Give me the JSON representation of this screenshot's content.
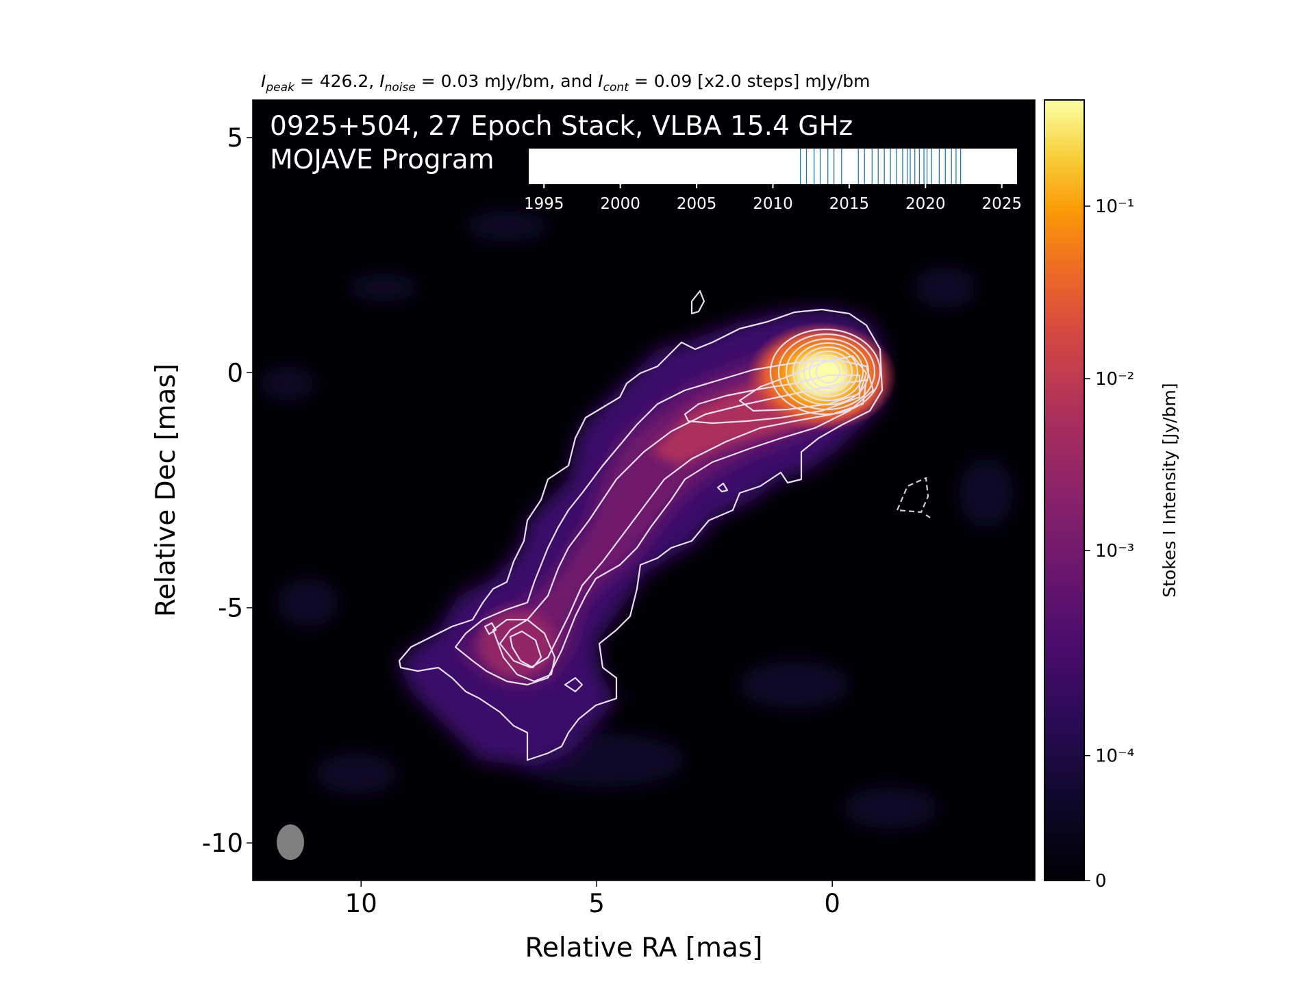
{
  "header": {
    "peak_sym": "I",
    "peak_sub": "peak",
    "peak_val": " = 426.2, ",
    "noise_sym": "I",
    "noise_sub": "noise",
    "noise_val": " = 0.03 mJy/bm, and ",
    "cont_sym": "I",
    "cont_sub": "cont",
    "cont_val": " = 0.09 [x2.0 steps] mJy/bm"
  },
  "chart_data": {
    "type": "heatmap",
    "title_line1": "0925+504, 27 Epoch Stack, VLBA 15.4 GHz",
    "title_line2": "MOJAVE Program",
    "xlabel": "Relative RA [mas]",
    "ylabel": "Relative Dec [mas]",
    "xlim": [
      12.3,
      -4.3
    ],
    "ylim": [
      -10.8,
      5.8
    ],
    "xticks": [
      {
        "value": 10,
        "label": "10"
      },
      {
        "value": 5,
        "label": "5"
      },
      {
        "value": 0,
        "label": "0"
      }
    ],
    "yticks": [
      {
        "value": 5,
        "label": "5"
      },
      {
        "value": 0,
        "label": "0"
      },
      {
        "value": -5,
        "label": "-5"
      },
      {
        "value": -10,
        "label": "-10"
      }
    ],
    "colorbar": {
      "label": "Stokes I Intensity [Jy/bm]",
      "colormap": "inferno",
      "ticks": [
        {
          "label": "0",
          "frac": 0.0
        },
        {
          "label": "10⁻⁴",
          "frac": 0.16
        },
        {
          "label": "10⁻³",
          "frac": 0.423
        },
        {
          "label": "10⁻²",
          "frac": 0.643
        },
        {
          "label": "10⁻¹",
          "frac": 0.864
        }
      ]
    },
    "core": {
      "ra": 0.1,
      "dec": -0.1,
      "peak_jy_per_bm": 0.4262
    },
    "beam": {
      "ra": 11.6,
      "dec": -10.0
    },
    "epoch_timeline": {
      "xlim": [
        1994,
        2026
      ],
      "ticks": [
        1995,
        2000,
        2005,
        2010,
        2015,
        2020,
        2025
      ],
      "epochs": [
        2011.8,
        2012.2,
        2012.7,
        2013.1,
        2013.6,
        2014.0,
        2014.5,
        2015.6,
        2016.0,
        2016.5,
        2016.9,
        2017.3,
        2017.7,
        2018.1,
        2018.5,
        2018.8,
        2019.0,
        2019.3,
        2019.6,
        2019.9,
        2020.1,
        2020.4,
        2020.9,
        2021.3,
        2021.7,
        2022.0,
        2022.3
      ]
    },
    "colors": {
      "background": "#000004",
      "contour": "#e8e0f0",
      "epoch_line": "#1f77b4"
    }
  }
}
